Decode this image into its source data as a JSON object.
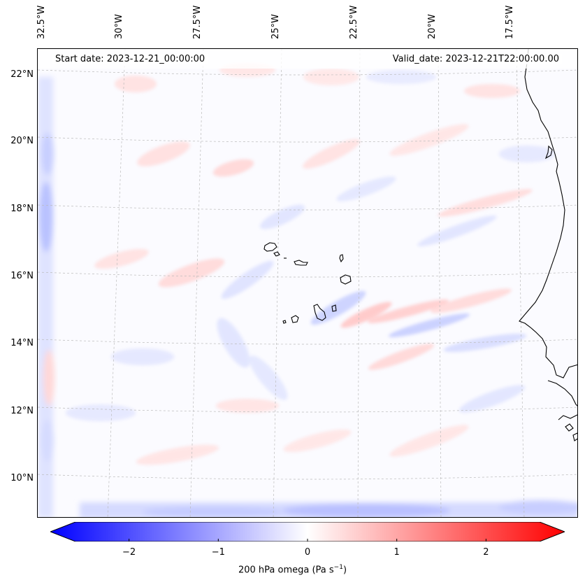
{
  "map": {
    "title_left": "Start date: 2023-12-21_00:00:00",
    "title_right": "Valid_date: 2023-12-21T22:00:00.00",
    "lon_labels": [
      "32.5°W",
      "30°W",
      "27.5°W",
      "25°W",
      "22.5°W",
      "20°W",
      "17.5°W"
    ],
    "lat_labels": [
      "22°N",
      "20°N",
      "18°N",
      "16°N",
      "14°N",
      "12°N",
      "10°N"
    ],
    "variable": "200 hPa omega",
    "features": [
      "Cape Verde islands",
      "West African coastline"
    ]
  },
  "colorbar": {
    "tick_labels": [
      "−2",
      "−1",
      "0",
      "1",
      "2"
    ],
    "tick_values": [
      -2,
      -1,
      0,
      1,
      2
    ],
    "range": [
      -2.6,
      2.6
    ],
    "label_text": "200 hPa omega (Pa s",
    "label_exp": "−1",
    "label_close": ")",
    "colors": {
      "low": "#0000ff",
      "mid": "#ffffff",
      "high": "#ff0000"
    }
  }
}
